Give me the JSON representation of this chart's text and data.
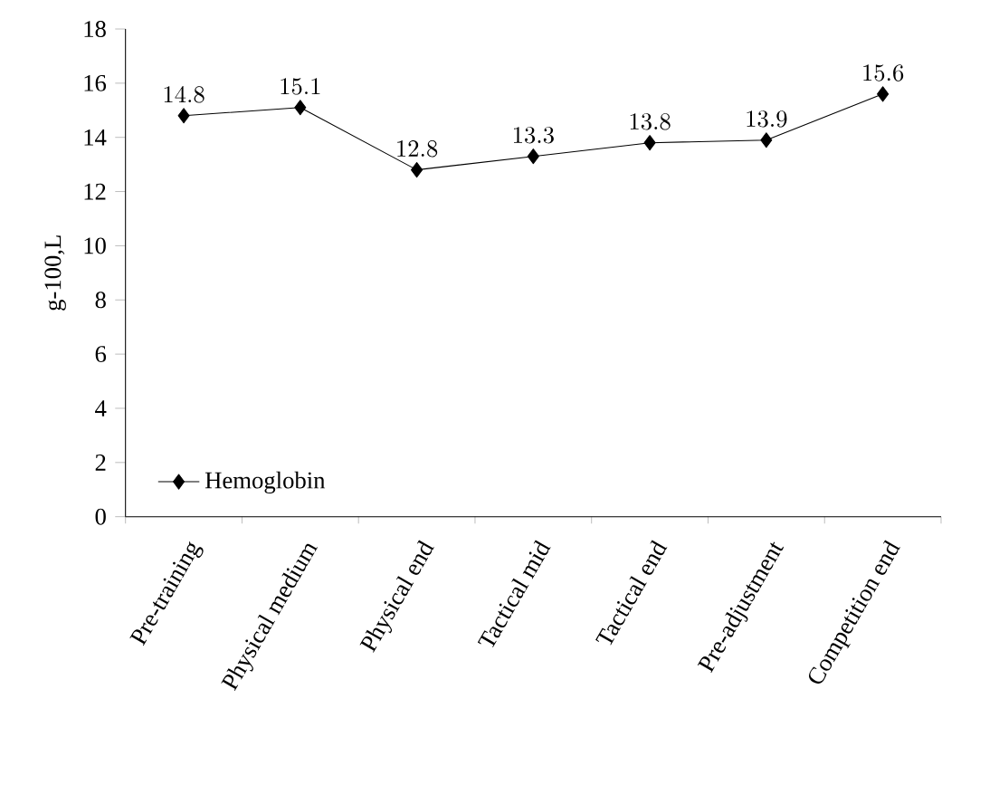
{
  "chart_data": {
    "type": "line",
    "ylabel": "g-100,L",
    "categories": [
      "Pre-training",
      "Physical medium",
      "Physical end",
      "Tactical mid",
      "Tactical end",
      "Pre-adjustment",
      "Competition end"
    ],
    "series": [
      {
        "name": "Hemoglobin",
        "color": "#000000",
        "values": [
          14.8,
          15.1,
          12.8,
          13.3,
          13.8,
          13.9,
          15.6
        ]
      }
    ],
    "ylim": [
      0,
      18
    ],
    "yticks": [
      0,
      2,
      4,
      6,
      8,
      10,
      12,
      14,
      16,
      18
    ],
    "marker": "diamond",
    "line_style": "solid",
    "legend": "bottom left",
    "data_labels": true,
    "grid": false
  }
}
